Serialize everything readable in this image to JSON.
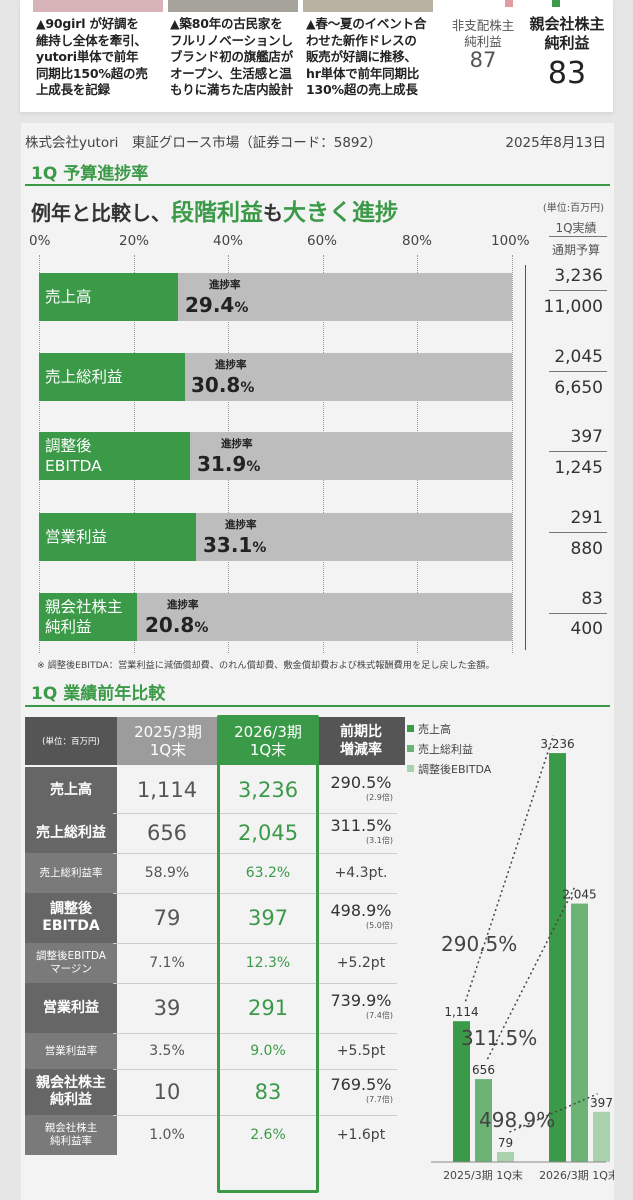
{
  "top": {
    "items": [
      "▲90girl が好調を維持し全体を牽引、yutori単体で前年同期比150%超の売上成長を記録",
      "▲築80年の古民家をフルリノベーションしブランド初の旗艦店がオープン、生活感と温もりに満ちた店内設計",
      "▲春〜夏のイベント合わせた新作ドレスの販売が好調に推移、hr単体で前年同期比130%超の売上成長"
    ],
    "item_lines": [
      [
        "▲90girl が好調を",
        "維持し全体を牽引、",
        "yutori単体で前年",
        "同期比150%超の売",
        "上成長を記録"
      ],
      [
        "▲築80年の古民家を",
        "フルリノベーションし",
        "ブランド初の旗艦店が",
        "オープン、生活感と温",
        "もりに満ちた店内設計"
      ],
      [
        "▲春〜夏のイベント合",
        "わせた新作ドレスの",
        "販売が好調に推移、",
        "hr単体で前年同期比",
        "130%超の売上成長"
      ]
    ],
    "noncontrolling_label_1": "非支配株主",
    "noncontrolling_label_2": "純利益",
    "noncontrolling_value": "87",
    "parent_label_1": "親会社株主",
    "parent_label_2": "純利益",
    "parent_value": "83"
  },
  "header": {
    "company": "株式会社yutori　東証グロース市場（証券コード：5892）",
    "date": "2025年8月13日"
  },
  "progress": {
    "section_title": "1Q 予算進捗率",
    "subtitle_prefix": "例年と比較し、",
    "subtitle_highlight": "段階利益",
    "subtitle_mid": "も",
    "subtitle_highlight2": "大きく進捗",
    "unit": "(単位:百万円)",
    "actual_label": "1Q実績",
    "budget_label": "通期予算",
    "axis": [
      "0%",
      "20%",
      "40%",
      "60%",
      "80%",
      "100%"
    ],
    "rate_label": "進捗率",
    "rows": [
      {
        "name1": "売上高",
        "name2": "",
        "rate": "29.4",
        "actual": "3,236",
        "budget": "11,000"
      },
      {
        "name1": "売上総利益",
        "name2": "",
        "rate": "30.8",
        "actual": "2,045",
        "budget": "6,650"
      },
      {
        "name1": "調整後",
        "name2": "EBITDA",
        "rate": "31.9",
        "actual": "397",
        "budget": "1,245"
      },
      {
        "name1": "営業利益",
        "name2": "",
        "rate": "33.1",
        "actual": "291",
        "budget": "880"
      },
      {
        "name1": "親会社株主",
        "name2": "純利益",
        "rate": "20.8",
        "actual": "83",
        "budget": "400"
      }
    ],
    "percent_sign": "%",
    "note": "※ 調整後EBITDA：営業利益に減価償却費、のれん償却費、敷金償却費および株式報酬費用を足し戻した金額。"
  },
  "yoy": {
    "section_title": "1Q 業績前年比較",
    "unit": "(単位：百万円)",
    "col_prev_1": "2025/3期",
    "col_prev_2": "1Q末",
    "col_cur_1": "2026/3期",
    "col_cur_2": "1Q末",
    "col_chg_1": "前期比",
    "col_chg_2": "増減率",
    "rows": [
      {
        "name": "売上高",
        "prev": "1,114",
        "cur": "3,236",
        "chg": "290.5%",
        "mult": "(2.9倍)"
      },
      {
        "name": "売上総利益",
        "prev": "656",
        "cur": "2,045",
        "chg": "311.5%",
        "mult": "(3.1倍)"
      },
      {
        "name": "売上総利益率",
        "prev": "58.9%",
        "cur": "63.2%",
        "chg": "+4.3pt."
      },
      {
        "name": "調整後EBITDA",
        "prev": "79",
        "cur": "397",
        "chg": "498.9%",
        "mult": "(5.0倍)"
      },
      {
        "name": "調整後EBITDAマージン",
        "prev": "7.1%",
        "cur": "12.3%",
        "chg": "+5.2pt"
      },
      {
        "name": "営業利益",
        "prev": "39",
        "cur": "291",
        "chg": "739.9%",
        "mult": "(7.4倍)"
      },
      {
        "name": "営業利益率",
        "prev": "3.5%",
        "cur": "9.0%",
        "chg": "+5.5pt"
      },
      {
        "name": "親会社株主純利益",
        "prev": "10",
        "cur": "83",
        "chg": "769.5%",
        "mult": "(7.7倍)"
      },
      {
        "name": "親会社株主純利益率",
        "prev": "1.0%",
        "cur": "2.6%",
        "chg": "+1.6pt"
      }
    ],
    "row_name_lines": [
      [
        "売上高"
      ],
      [
        "売上総利益"
      ],
      [
        "売上総利益率"
      ],
      [
        "調整後",
        "EBITDA"
      ],
      [
        "調整後EBITDA",
        "マージン"
      ],
      [
        "営業利益"
      ],
      [
        "営業利益率"
      ],
      [
        "親会社株主",
        "純利益"
      ],
      [
        "親会社株主",
        "純利益率"
      ]
    ]
  },
  "chart_data": {
    "type": "bar",
    "categories": [
      "2025/3期 1Q末",
      "2026/3期 1Q末"
    ],
    "series": [
      {
        "name": "売上高",
        "values": [
          1114,
          3236
        ],
        "labels": [
          "1,114",
          "3,236"
        ],
        "color": "#3b9a48"
      },
      {
        "name": "売上総利益",
        "values": [
          656,
          2045
        ],
        "labels": [
          "656",
          "2,045"
        ],
        "color": "#6cb475"
      },
      {
        "name": "調整後EBITDA",
        "values": [
          79,
          397
        ],
        "labels": [
          "79",
          "397"
        ],
        "color": "#a9d3ad"
      }
    ],
    "annotations": [
      "290.5%",
      "311.5%",
      "498.9%"
    ],
    "ylim": [
      0,
      3300
    ]
  },
  "colors": {
    "green": "#3b9a48",
    "gray": "#bdbdbd"
  }
}
